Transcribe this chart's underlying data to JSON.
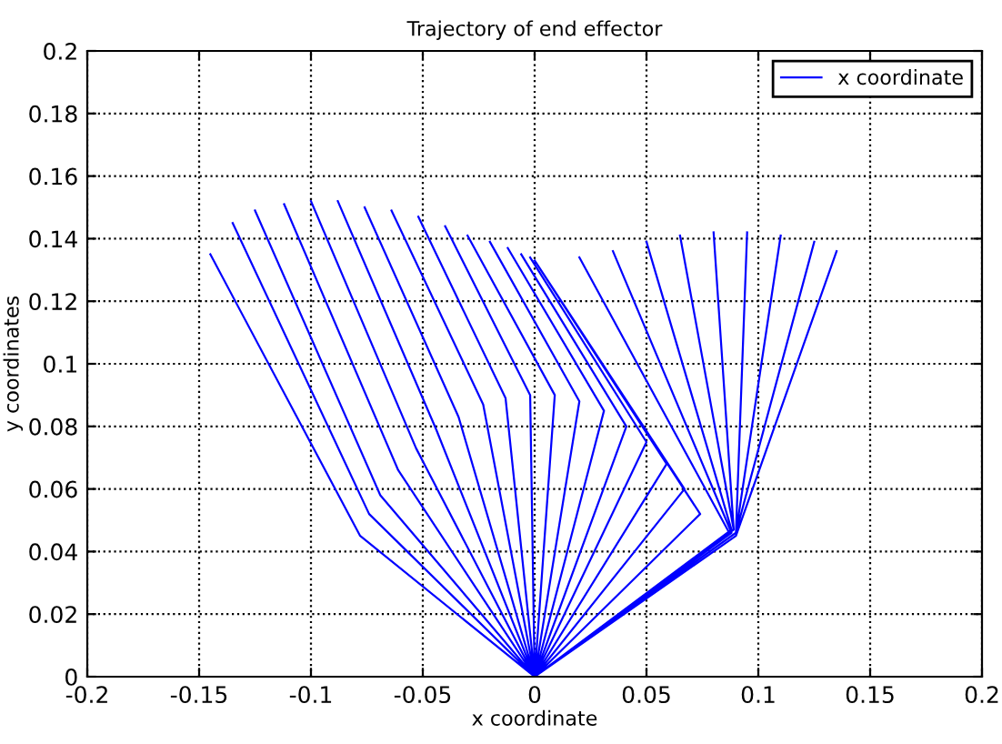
{
  "chart_data": {
    "type": "line",
    "title": "Trajectory of end effector",
    "xlabel": "x coordinate",
    "ylabel": "y coordinates",
    "xlim": [
      -0.2,
      0.2
    ],
    "xticks": [
      -0.2,
      -0.15,
      -0.1,
      -0.05,
      0,
      0.05,
      0.1,
      0.15,
      0.2
    ],
    "ylim": [
      0,
      0.2
    ],
    "yticks": [
      0,
      0.02,
      0.04,
      0.06,
      0.08,
      0.1,
      0.12,
      0.14,
      0.16,
      0.18,
      0.2
    ],
    "grid": true,
    "legend": "top right",
    "marker": "none",
    "line_style": "solid",
    "series": [
      {
        "name": "x coordinate",
        "color": "#0000ff",
        "x": [
          0,
          -0.078,
          -0.145,
          null,
          0,
          -0.074,
          -0.135,
          null,
          0,
          -0.069,
          -0.125,
          null,
          0,
          -0.061,
          -0.112,
          null,
          0,
          -0.053,
          -0.1,
          null,
          0,
          -0.044,
          -0.088,
          null,
          0,
          -0.034,
          -0.076,
          null,
          0,
          -0.023,
          -0.064,
          null,
          0,
          -0.013,
          -0.052,
          null,
          0,
          -0.002,
          -0.04,
          null,
          0,
          0.009,
          -0.03,
          null,
          0,
          0.02,
          -0.02,
          null,
          0,
          0.031,
          -0.012,
          null,
          0,
          0.041,
          -0.006,
          null,
          0,
          0.05,
          -0.002,
          null,
          0,
          0.059,
          0,
          null,
          0,
          0.067,
          0,
          null,
          0,
          0.074,
          0,
          null,
          0,
          0.087,
          0.02,
          null,
          0,
          0.088,
          0.035,
          null,
          0,
          0.088,
          0.05,
          null,
          0,
          0.089,
          0.065,
          null,
          0,
          0.089,
          0.08,
          null,
          0,
          0.09,
          0.095,
          null,
          0,
          0.09,
          0.11,
          null,
          0,
          0.09,
          0.125,
          null,
          0,
          0.09,
          0.135
        ],
        "values": [
          0,
          0.045,
          0.135,
          null,
          0,
          0.052,
          0.145,
          null,
          0,
          0.058,
          0.149,
          null,
          0,
          0.066,
          0.151,
          null,
          0,
          0.073,
          0.152,
          null,
          0,
          0.079,
          0.152,
          null,
          0,
          0.083,
          0.15,
          null,
          0,
          0.087,
          0.149,
          null,
          0,
          0.089,
          0.147,
          null,
          0,
          0.09,
          0.144,
          null,
          0,
          0.09,
          0.141,
          null,
          0,
          0.088,
          0.139,
          null,
          0,
          0.085,
          0.137,
          null,
          0,
          0.08,
          0.135,
          null,
          0,
          0.075,
          0.134,
          null,
          0,
          0.068,
          0.133,
          null,
          0,
          0.06,
          0.133,
          null,
          0,
          0.052,
          0.133,
          null,
          0,
          0.046,
          0.134,
          null,
          0,
          0.046,
          0.136,
          null,
          0,
          0.047,
          0.139,
          null,
          0,
          0.047,
          0.141,
          null,
          0,
          0.047,
          0.142,
          null,
          0,
          0.046,
          0.142,
          null,
          0,
          0.046,
          0.141,
          null,
          0,
          0.046,
          0.139,
          null,
          0,
          0.045,
          0.136
        ]
      }
    ]
  }
}
